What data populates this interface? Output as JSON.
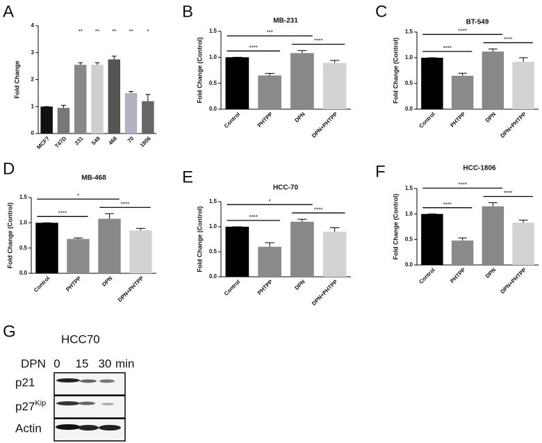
{
  "chart_data": [
    {
      "type": "bar",
      "panel": "A",
      "ylabel": "Fold Change",
      "categories": [
        "MCF7",
        "T47D",
        "231",
        "549",
        "468",
        "70",
        "1806"
      ],
      "values": [
        1.0,
        0.95,
        2.55,
        2.55,
        2.75,
        1.5,
        1.2
      ],
      "errors": [
        0,
        0.1,
        0.08,
        0.08,
        0.12,
        0.06,
        0.25
      ],
      "annotations": [
        null,
        null,
        "**",
        "**",
        "**",
        "**",
        "*"
      ],
      "colors": [
        "#111111",
        "#777777",
        "#888888",
        "#cfcfcf",
        "#555555",
        "#b2b2c2",
        "#666666"
      ],
      "ylim": [
        0,
        4
      ],
      "yticks": [
        0,
        1,
        2,
        3,
        4
      ]
    },
    {
      "type": "bar",
      "panel": "B",
      "title": "MB-231",
      "ylabel": "Fold Change (Control)",
      "categories": [
        "Control",
        "PHTPP",
        "DPN",
        "DPN+PHTPP"
      ],
      "values": [
        1.0,
        0.65,
        1.08,
        0.89
      ],
      "errors": [
        0,
        0.04,
        0.05,
        0.05
      ],
      "colors": [
        "#000000",
        "#8a8a8a",
        "#888888",
        "#d3d3d3"
      ],
      "brackets": [
        {
          "from": "Control",
          "to": "PHTPP",
          "label": "****"
        },
        {
          "from": "Control",
          "to": "DPN",
          "label": "***"
        },
        {
          "from": "DPN",
          "to": "DPN+PHTPP",
          "label": "****"
        }
      ],
      "ylim": [
        0,
        1.5
      ],
      "yticks": [
        {
          "value": 0,
          "label": "0.0"
        },
        {
          "value": 0.5,
          "label": "0.5"
        },
        {
          "value": 1,
          "label": "1.0"
        },
        {
          "value": 1.5,
          "label": "1.5"
        }
      ]
    },
    {
      "type": "bar",
      "panel": "C",
      "title": "BT-549",
      "ylabel": "Fold Change (Control)",
      "categories": [
        "Control",
        "PHTPP",
        "DPN",
        "DPN+PHTPP"
      ],
      "values": [
        1.0,
        0.65,
        1.12,
        0.92
      ],
      "errors": [
        0,
        0.05,
        0.05,
        0.08
      ],
      "colors": [
        "#000000",
        "#8a8a8a",
        "#888888",
        "#d3d3d3"
      ],
      "brackets": [
        {
          "from": "Control",
          "to": "PHTPP",
          "label": "****"
        },
        {
          "from": "Control",
          "to": "DPN",
          "label": "****"
        },
        {
          "from": "DPN",
          "to": "DPN+PHTPP",
          "label": "****"
        }
      ],
      "ylim": [
        0,
        1.5
      ],
      "yticks": [
        {
          "value": 0,
          "label": "0.0"
        },
        {
          "value": 0.5,
          "label": "0.5"
        },
        {
          "value": 1,
          "label": "1.0"
        },
        {
          "value": 1.5,
          "label": "1.5"
        }
      ]
    },
    {
      "type": "bar",
      "panel": "D",
      "title": "MB-468",
      "ylabel": "Fold Change (Control)",
      "categories": [
        "Control",
        "PHTPP",
        "DPN",
        "DPN+PHTPP"
      ],
      "values": [
        1.0,
        0.68,
        1.08,
        0.85
      ],
      "errors": [
        0,
        0.02,
        0.1,
        0.04
      ],
      "colors": [
        "#000000",
        "#8a8a8a",
        "#888888",
        "#d3d3d3"
      ],
      "brackets": [
        {
          "from": "Control",
          "to": "PHTPP",
          "label": "****"
        },
        {
          "from": "Control",
          "to": "DPN",
          "label": "*"
        },
        {
          "from": "DPN",
          "to": "DPN+PHTPP",
          "label": "****"
        }
      ],
      "ylim": [
        0,
        1.5
      ],
      "yticks": [
        {
          "value": 0,
          "label": "0.0"
        },
        {
          "value": 0.5,
          "label": "0.5"
        },
        {
          "value": 1,
          "label": "1.0"
        },
        {
          "value": 1.5,
          "label": "1.5"
        }
      ]
    },
    {
      "type": "bar",
      "panel": "E",
      "title": "HCC-70",
      "ylabel": "Fold Change (Control)",
      "categories": [
        "Control",
        "PHTPP",
        "DPN",
        "DPN+PHTPP"
      ],
      "values": [
        1.0,
        0.6,
        1.1,
        0.9
      ],
      "errors": [
        0,
        0.08,
        0.05,
        0.08
      ],
      "colors": [
        "#000000",
        "#8a8a8a",
        "#888888",
        "#d3d3d3"
      ],
      "brackets": [
        {
          "from": "Control",
          "to": "PHTPP",
          "label": "****"
        },
        {
          "from": "Control",
          "to": "DPN",
          "label": "*"
        },
        {
          "from": "DPN",
          "to": "DPN+PHTPP",
          "label": "****"
        }
      ],
      "ylim": [
        0,
        1.5
      ],
      "yticks": [
        {
          "value": 0,
          "label": "0.0"
        },
        {
          "value": 0.5,
          "label": "0.5"
        },
        {
          "value": 1,
          "label": "1.0"
        },
        {
          "value": 1.5,
          "label": "1.5"
        }
      ]
    },
    {
      "type": "bar",
      "panel": "F",
      "title": "HCC-1806",
      "ylabel": "Fold Change (Control)",
      "categories": [
        "Control",
        "PHTPP",
        "DPN",
        "DPN+PHTPP"
      ],
      "values": [
        1.0,
        0.48,
        1.15,
        0.83
      ],
      "errors": [
        0,
        0.05,
        0.07,
        0.05
      ],
      "colors": [
        "#000000",
        "#8a8a8a",
        "#888888",
        "#d3d3d3"
      ],
      "brackets": [
        {
          "from": "Control",
          "to": "PHTPP",
          "label": "****"
        },
        {
          "from": "Control",
          "to": "DPN",
          "label": "****"
        },
        {
          "from": "DPN",
          "to": "DPN+PHTPP",
          "label": "****"
        }
      ],
      "ylim": [
        0,
        1.5
      ],
      "yticks": [
        {
          "value": 0,
          "label": "0.0"
        },
        {
          "value": 0.5,
          "label": "0.5"
        },
        {
          "value": 1,
          "label": "1.0"
        },
        {
          "value": 1.5,
          "label": "1.5"
        }
      ]
    }
  ],
  "blot": {
    "panel": "G",
    "title": "HCC70",
    "treatment": "DPN",
    "lanes": [
      "0",
      "15",
      "30"
    ],
    "unit": "min",
    "rows": [
      {
        "label": "p21"
      },
      {
        "label": "p27",
        "superscript": "Kip"
      },
      {
        "label": "Actin"
      }
    ]
  }
}
